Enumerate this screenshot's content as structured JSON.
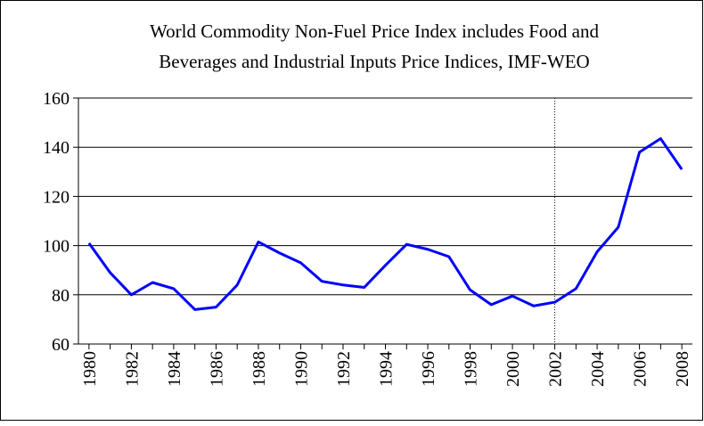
{
  "chart_data": {
    "type": "line",
    "title": [
      "World Commodity Non-Fuel Price Index includes Food and",
      "Beverages and Industrial Inputs Price Indices, IMF-WEO"
    ],
    "categories": [
      "1980",
      null,
      "1982",
      null,
      "1984",
      null,
      "1986",
      null,
      "1988",
      null,
      "1990",
      null,
      "1992",
      null,
      "1994",
      null,
      "1996",
      null,
      "1998",
      null,
      "2000",
      null,
      "2002",
      null,
      "2004",
      null,
      "2006",
      null,
      "2008"
    ],
    "series": [
      {
        "color": "#0000ff",
        "values": [
          101,
          89,
          80,
          85,
          82.5,
          74,
          75,
          84,
          101.5,
          97,
          93,
          85.5,
          84,
          83,
          92,
          100.5,
          98.5,
          95.5,
          82,
          76,
          79.5,
          75.5,
          77,
          82.5,
          97.5,
          107.5,
          138,
          143.5,
          131
        ]
      }
    ],
    "ylim": [
      60,
      160
    ],
    "yticks": [
      60,
      80,
      100,
      120,
      140,
      160
    ],
    "grid": true,
    "vline": "2002"
  }
}
